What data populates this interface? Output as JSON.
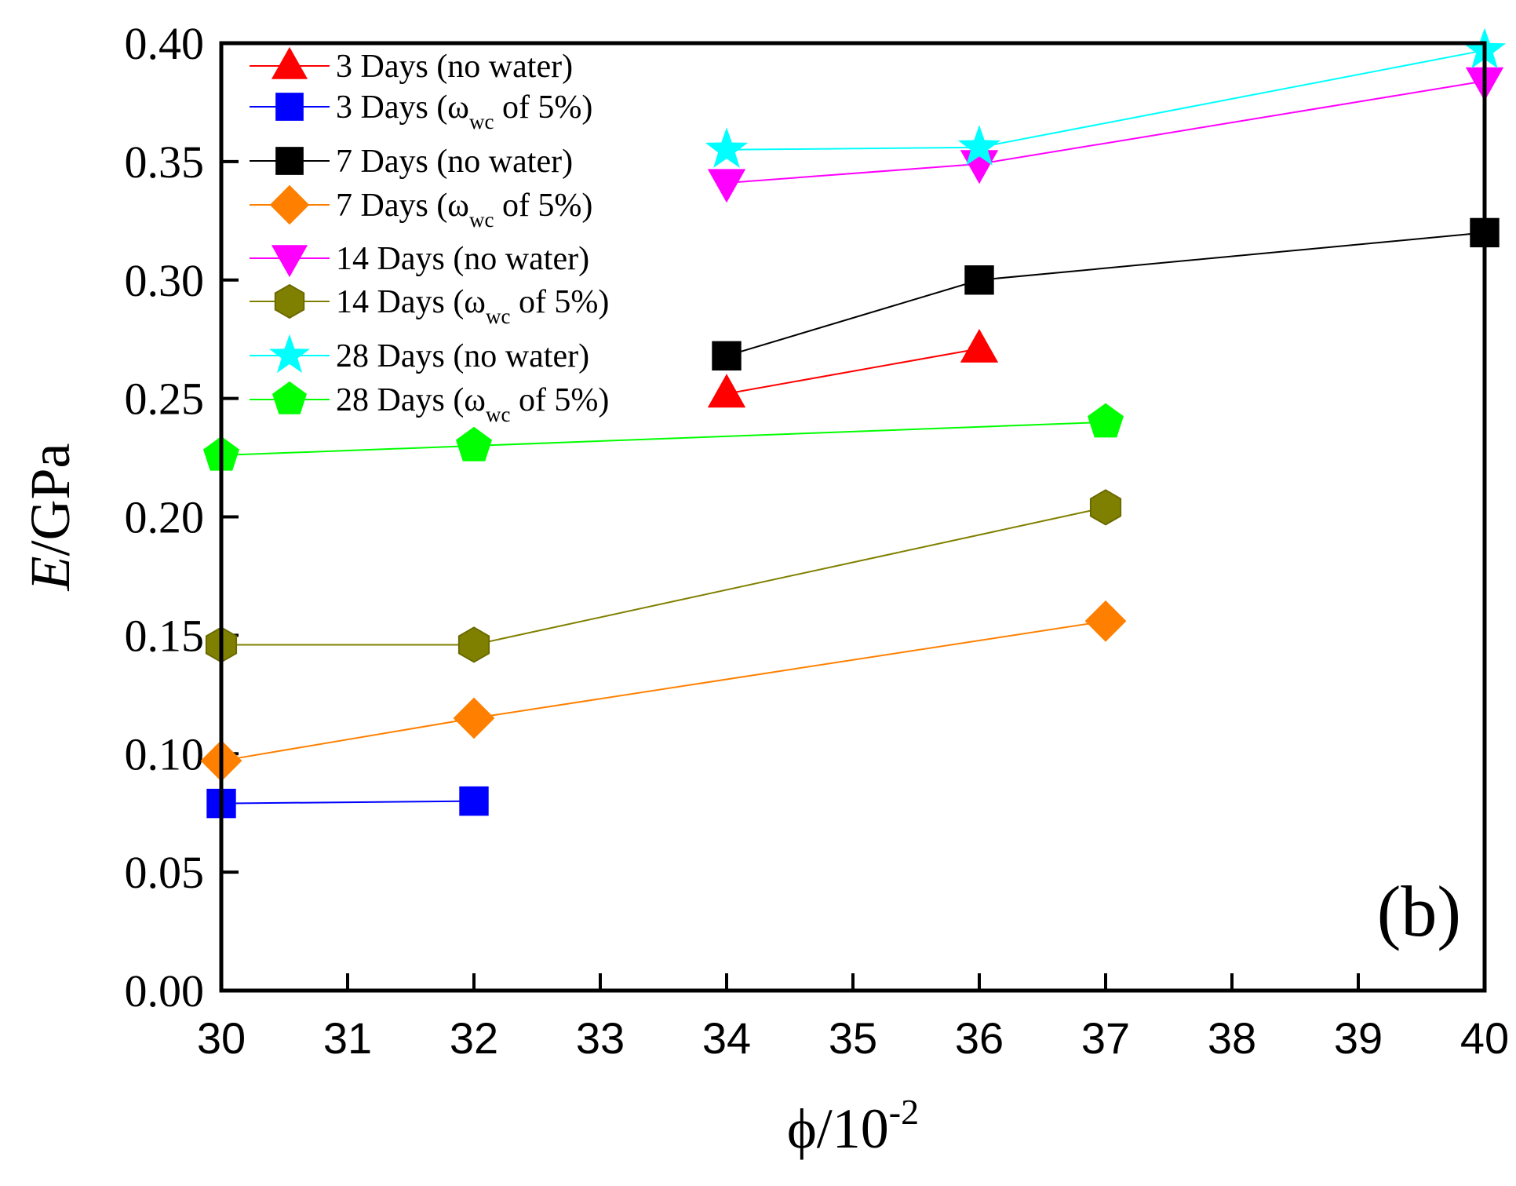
{
  "chart_data": {
    "type": "line",
    "panel_label": "(b)",
    "xlabel": {
      "base": "ϕ/10",
      "sup": "-2"
    },
    "ylabel": {
      "italic": "E",
      "rest": "/GPa"
    },
    "x_ticks": [
      "30",
      "31",
      "32",
      "33",
      "34",
      "35",
      "36",
      "37",
      "38",
      "39",
      "40"
    ],
    "y_ticks": [
      "0.00",
      "0.05",
      "0.10",
      "0.15",
      "0.20",
      "0.25",
      "0.30",
      "0.35",
      "0.40"
    ],
    "xlim": [
      30,
      40
    ],
    "ylim": [
      0.0,
      0.4
    ],
    "legend_position": "top-left",
    "series": [
      {
        "name": "3 Days (no water)",
        "label": {
          "pre": "3 Days (no water)",
          "sub": "",
          "post": ""
        },
        "marker": "triangle",
        "color": "#ff0000",
        "points": [
          [
            34,
            0.252
          ],
          [
            36,
            0.271
          ]
        ]
      },
      {
        "name": "3 Days (ωwc of 5%)",
        "label": {
          "pre": "3 Days (ω",
          "sub": "wc",
          "post": " of 5%)"
        },
        "marker": "square",
        "color": "#0000ff",
        "points": [
          [
            30,
            0.079
          ],
          [
            32,
            0.08
          ]
        ]
      },
      {
        "name": "7 Days (no water)",
        "label": {
          "pre": "7 Days (no water)",
          "sub": "",
          "post": ""
        },
        "marker": "square",
        "color": "#000000",
        "points": [
          [
            34,
            0.268
          ],
          [
            36,
            0.3
          ],
          [
            40,
            0.32
          ]
        ]
      },
      {
        "name": "7 Days (ωwc of 5%)",
        "label": {
          "pre": "7 Days (ω",
          "sub": "wc",
          "post": " of 5%)"
        },
        "marker": "diamond",
        "color": "#ff8000",
        "points": [
          [
            30,
            0.097
          ],
          [
            32,
            0.115
          ],
          [
            37,
            0.156
          ]
        ]
      },
      {
        "name": "14 Days (no water)",
        "label": {
          "pre": "14 Days (no water)",
          "sub": "",
          "post": ""
        },
        "marker": "triangle-down",
        "color": "#ff00ff",
        "points": [
          [
            34,
            0.341
          ],
          [
            36,
            0.349
          ],
          [
            40,
            0.384
          ]
        ]
      },
      {
        "name": "14 Days (ωwc of 5%)",
        "label": {
          "pre": "14 Days (ω",
          "sub": "wc",
          "post": " of 5%)"
        },
        "marker": "hexagon",
        "color": "#808000",
        "points": [
          [
            30,
            0.146
          ],
          [
            32,
            0.146
          ],
          [
            37,
            0.204
          ]
        ]
      },
      {
        "name": "28 Days (no water)",
        "label": {
          "pre": "28 Days (no water)",
          "sub": "",
          "post": ""
        },
        "marker": "star",
        "color": "#00ffff",
        "points": [
          [
            34,
            0.355
          ],
          [
            36,
            0.356
          ],
          [
            40,
            0.397
          ]
        ]
      },
      {
        "name": "28 Days (ωwc of 5%)",
        "label": {
          "pre": "28 Days (ω",
          "sub": "wc",
          "post": " of 5%)"
        },
        "marker": "pentagon",
        "color": "#00ff00",
        "points": [
          [
            30,
            0.226
          ],
          [
            32,
            0.23
          ],
          [
            37,
            0.24
          ]
        ]
      }
    ]
  }
}
